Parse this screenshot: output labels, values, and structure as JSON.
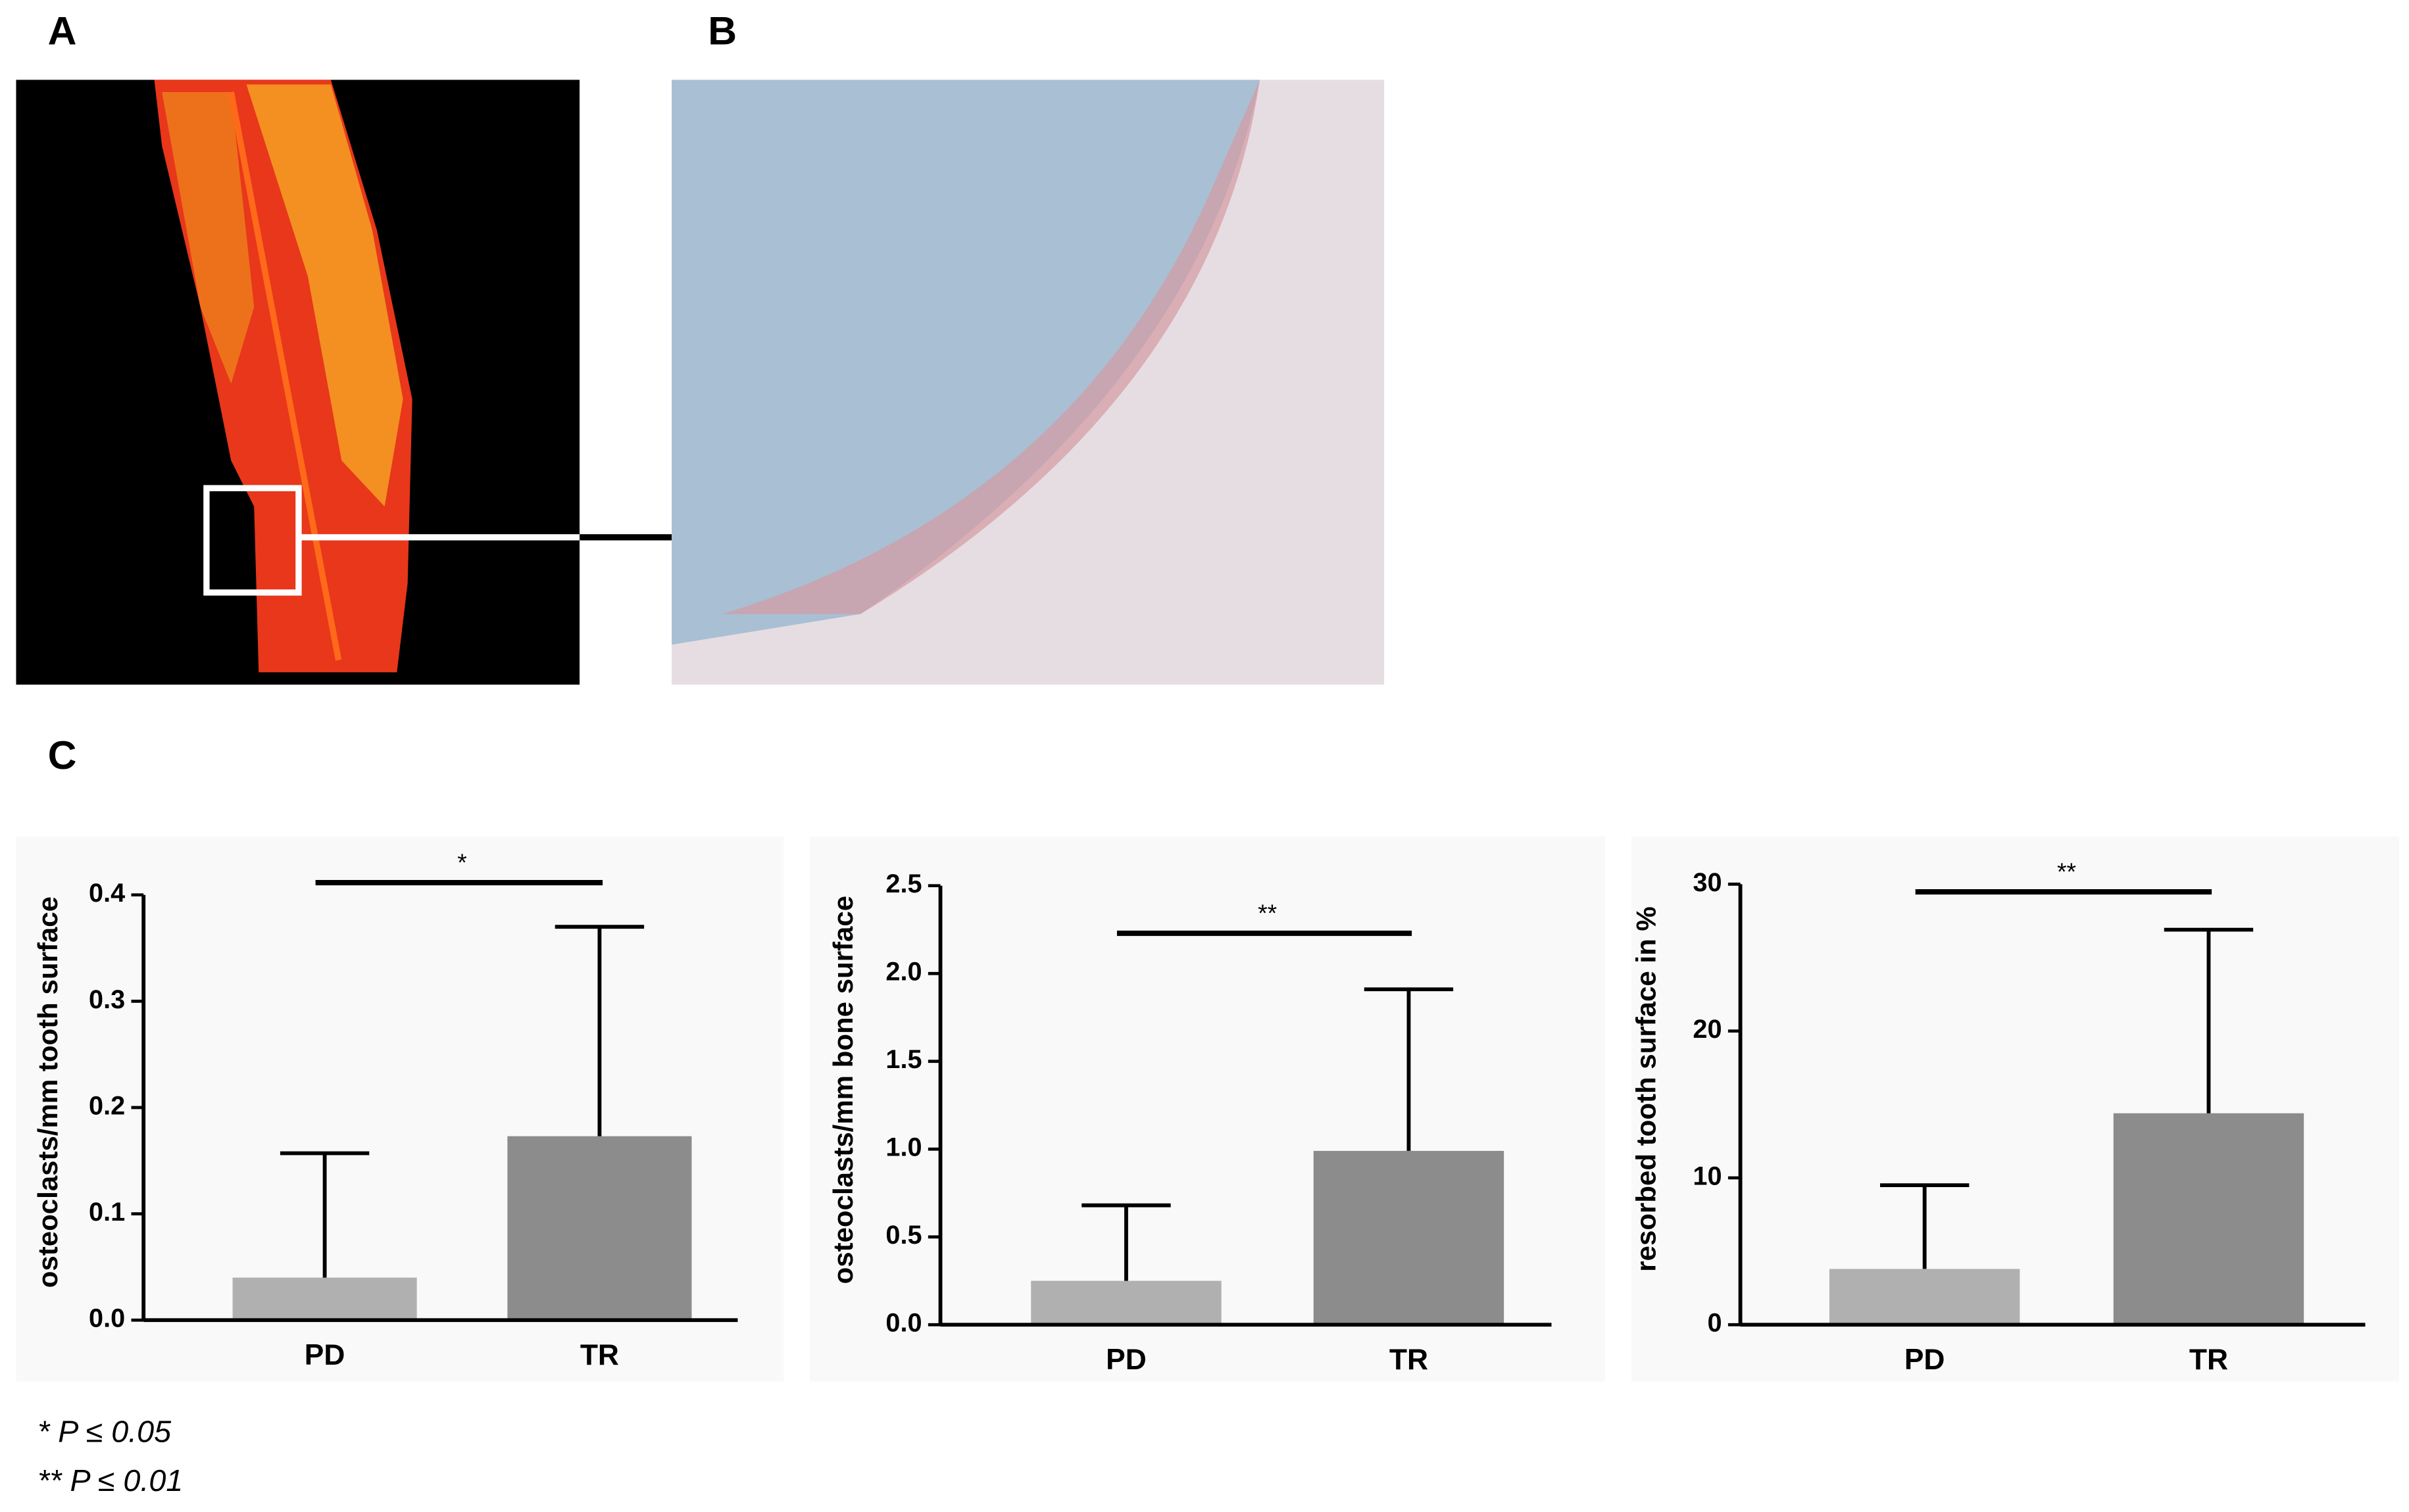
{
  "panels": {
    "a": "A",
    "b": "B",
    "c": "C"
  },
  "chart_data": [
    {
      "type": "bar",
      "ylabel": "osteoclasts/mm tooth surface",
      "categories": [
        "PD",
        "TR"
      ],
      "values": [
        0.04,
        0.173
      ],
      "errors": [
        0.117,
        0.197
      ],
      "colors": [
        "#b0b0b0",
        "#8c8c8c"
      ],
      "ylim": [
        0,
        0.4
      ],
      "yticks": [
        {
          "value": 0,
          "label": "0.0"
        },
        0.1,
        0.2,
        0.3,
        0.4
      ],
      "annotation": "*"
    },
    {
      "type": "bar",
      "ylabel": "osteoclasts/mm bone surface",
      "categories": [
        "PD",
        "TR"
      ],
      "values": [
        0.25,
        0.99
      ],
      "errors": [
        0.43,
        0.92
      ],
      "colors": [
        "#b0b0b0",
        "#8c8c8c"
      ],
      "ylim": [
        0,
        2.5
      ],
      "yticks": [
        {
          "value": 0,
          "label": "0.0"
        },
        0.5,
        {
          "value": 1,
          "label": "1.0"
        },
        1.5,
        {
          "value": 2,
          "label": "2.0"
        },
        2.5
      ],
      "annotation": "**"
    },
    {
      "type": "bar",
      "ylabel": "resorbed tooth surface in %",
      "categories": [
        "PD",
        "TR"
      ],
      "values": [
        3.8,
        14.4
      ],
      "errors": [
        5.7,
        12.5
      ],
      "colors": [
        "#b0b0b0",
        "#8c8c8c"
      ],
      "ylim": [
        0,
        30
      ],
      "yticks": [
        0,
        10,
        20,
        30
      ],
      "annotation": "**"
    }
  ],
  "footnotes": [
    "* P ≤ 0.05",
    "** P ≤ 0.01"
  ]
}
